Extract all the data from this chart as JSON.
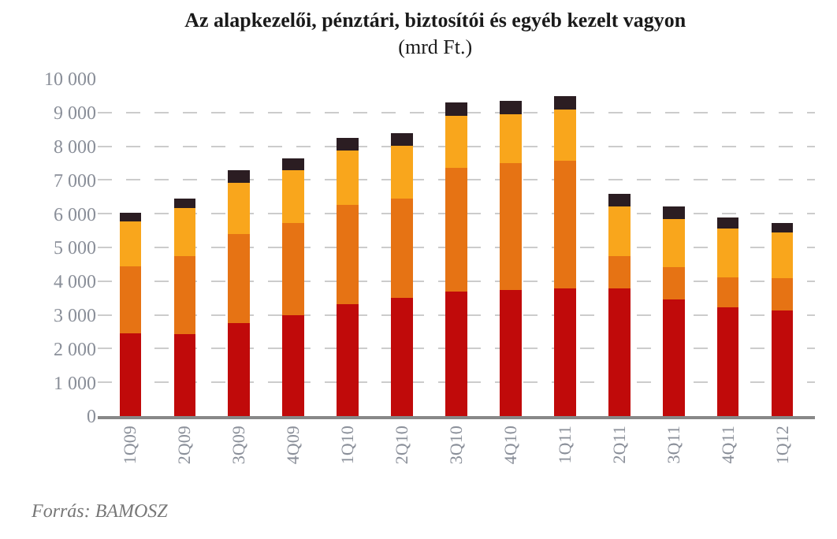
{
  "chart_data": {
    "type": "bar",
    "stacked": true,
    "title": "Az alapkezelői, pénztári, biztosítói és egyéb kezelt vagyon",
    "subtitle": "(mrd Ft.)",
    "categories": [
      "1Q09",
      "2Q09",
      "3Q09",
      "4Q09",
      "1Q10",
      "2Q10",
      "3Q10",
      "4Q10",
      "1Q11",
      "2Q11",
      "3Q11",
      "4Q11",
      "1Q12"
    ],
    "series": [
      {
        "color": "#c00a0a",
        "values": [
          2460,
          2420,
          2750,
          2990,
          3320,
          3510,
          3700,
          3740,
          3790,
          3790,
          3460,
          3220,
          3130
        ]
      },
      {
        "color": "#e67314",
        "values": [
          1990,
          2320,
          2650,
          2740,
          2940,
          2940,
          3650,
          3750,
          3790,
          950,
          950,
          900,
          950
        ]
      },
      {
        "color": "#f9a61c",
        "values": [
          1330,
          1420,
          1520,
          1570,
          1610,
          1560,
          1560,
          1470,
          1520,
          1470,
          1420,
          1430,
          1370
        ]
      },
      {
        "color": "#2b1d22",
        "values": [
          240,
          290,
          380,
          330,
          380,
          380,
          380,
          380,
          380,
          380,
          380,
          330,
          280
        ]
      }
    ],
    "ylim": [
      0,
      10000
    ],
    "yticks": [
      0,
      {
        "value": 1000,
        "label": "1 000"
      },
      {
        "value": 2000,
        "label": "2 000"
      },
      {
        "value": 3000,
        "label": "3 000"
      },
      {
        "value": 4000,
        "label": "4 000"
      },
      {
        "value": 5000,
        "label": "5 000"
      },
      {
        "value": 6000,
        "label": "6 000"
      },
      {
        "value": 7000,
        "label": "7 000"
      },
      {
        "value": 8000,
        "label": "8 000"
      },
      {
        "value": 9000,
        "label": "9 000"
      },
      {
        "value": 10000,
        "label": "10 000"
      }
    ],
    "grid": "y",
    "annotations": [
      "Forrás: BAMOSZ"
    ]
  }
}
